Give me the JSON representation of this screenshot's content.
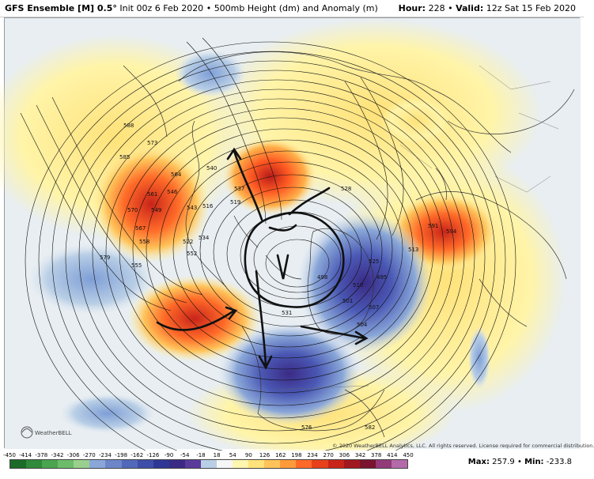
{
  "header": {
    "model": "GFS Ensemble [M] 0.5°",
    "init": "Init 00z 6 Feb 2020",
    "product": "500mb Height (dm) and Anomaly (m)",
    "hour_label": "Hour:",
    "hour": "228",
    "valid_label": "Valid:",
    "valid": "12z Sat 15 Feb 2020"
  },
  "copyright": "© 2020 WeatherBELL Analytics, LLC. All rights reserved. License required for commercial distribution.",
  "logo": "WeatherBELL",
  "contour_labels": [
    "588",
    "585",
    "582",
    "579",
    "573",
    "570",
    "561",
    "564",
    "567",
    "558",
    "555",
    "549",
    "546",
    "552",
    "543",
    "540",
    "537",
    "534",
    "531",
    "528",
    "525",
    "522",
    "519",
    "516",
    "513",
    "510",
    "507",
    "504",
    "501",
    "498",
    "495",
    "576",
    "591",
    "594"
  ],
  "colorbar": {
    "labels": [
      "-450",
      "-414",
      "-378",
      "-342",
      "-306",
      "-270",
      "-234",
      "-198",
      "-162",
      "-126",
      "-90",
      "-54",
      "-18",
      "18",
      "54",
      "90",
      "126",
      "162",
      "198",
      "234",
      "270",
      "306",
      "342",
      "378",
      "414",
      "450"
    ],
    "colors": [
      "#1c6b28",
      "#2f8a3a",
      "#4aa450",
      "#6dbc6a",
      "#9ad08e",
      "#8aa7d8",
      "#6d86c9",
      "#5468b9",
      "#3f4ea8",
      "#2f3796",
      "#3a2a85",
      "#5b3b9a",
      "#b9cfe6",
      "#f6f6f6",
      "#fff6b0",
      "#ffe27a",
      "#ffc35a",
      "#ff9a3a",
      "#ff6a28",
      "#e8401c",
      "#c8241a",
      "#a01820",
      "#7a1230",
      "#923a7a",
      "#b46aa8"
    ]
  },
  "stats": {
    "max_label": "Max:",
    "max": "257.9",
    "min_label": "Min:",
    "min": "-233.8"
  },
  "colors": {
    "positive_anomaly": "#e85a1e",
    "strong_positive": "#c8241a",
    "negative_anomaly": "#3f4ea8",
    "weak_negative": "#9bb6e0",
    "ridge_yellow": "#fff4a8",
    "ocean": "#e8eef2",
    "land_outline": "#333333"
  },
  "annotations": [
    "circle-annotation",
    "arrow-annotation"
  ]
}
